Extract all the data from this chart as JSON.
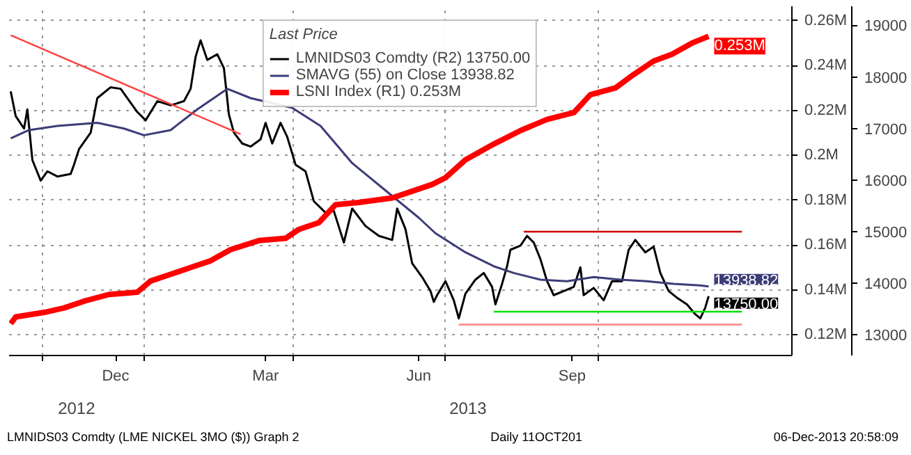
{
  "chart_data": {
    "type": "line",
    "legend_title": "Last Price",
    "legend": "top",
    "grid": true,
    "xlim": [
      "2012-10-12",
      "2014-01-25"
    ],
    "xticks": [
      {
        "value": "2012-11-01",
        "label": null
      },
      {
        "value": "2012-12-15",
        "label": "Dec"
      },
      {
        "value": "2013-01-01",
        "label": null
      },
      {
        "value": "2013-03-15",
        "label": "Mar"
      },
      {
        "value": "2013-04-01",
        "label": null
      },
      {
        "value": "2013-06-15",
        "label": "Jun"
      },
      {
        "value": "2013-07-01",
        "label": null
      },
      {
        "value": "2013-09-15",
        "label": "Sep"
      },
      {
        "value": "2013-10-01",
        "label": null
      }
    ],
    "ylim": [
      110800,
      266400
    ],
    "yticks": [
      {
        "value": 120000,
        "label": "0.12M"
      },
      {
        "value": 140000,
        "label": "0.14M"
      },
      {
        "value": 160000,
        "label": "0.16M"
      },
      {
        "value": 180000,
        "label": "0.18M"
      },
      {
        "value": 200000,
        "label": "0.2M"
      },
      {
        "value": 220000,
        "label": "0.22M"
      },
      {
        "value": 240000,
        "label": "0.24M"
      },
      {
        "value": 260000,
        "label": "0.26M"
      }
    ],
    "y2lim": [
      12600,
      19370
    ],
    "y2ticks": [
      13000,
      14000,
      15000,
      16000,
      17000,
      18000,
      19000
    ],
    "series": [
      {
        "name": "LMNIDS03 Comdty (R2) 13750.00",
        "color": "#000000",
        "axis": "y2",
        "x": [
          "2012-10-13",
          "2012-10-16",
          "2012-10-21",
          "2012-10-23",
          "2012-10-26",
          "2012-10-31",
          "2012-11-04",
          "2012-11-10",
          "2012-11-18",
          "2012-11-20",
          "2012-11-23",
          "2012-11-30",
          "2012-12-04",
          "2012-12-12",
          "2012-12-18",
          "2012-12-28",
          "2013-01-02",
          "2013-01-09",
          "2013-01-17",
          "2013-01-25",
          "2013-01-29",
          "2013-02-01",
          "2013-02-04",
          "2013-02-08",
          "2013-02-14",
          "2013-02-18",
          "2013-02-21",
          "2013-02-24",
          "2013-03-01",
          "2013-03-06",
          "2013-03-12",
          "2013-03-15",
          "2013-03-19",
          "2013-03-24",
          "2013-03-28",
          "2013-04-02",
          "2013-04-08",
          "2013-04-13",
          "2013-04-20",
          "2013-04-25",
          "2013-05-01",
          "2013-05-06",
          "2013-05-14",
          "2013-05-22",
          "2013-05-30",
          "2013-06-02",
          "2013-06-07",
          "2013-06-11",
          "2013-06-17",
          "2013-06-22",
          "2013-06-24",
          "2013-06-26",
          "2013-07-01",
          "2013-07-06",
          "2013-07-09",
          "2013-07-13",
          "2013-07-19",
          "2013-07-24",
          "2013-07-29",
          "2013-07-31",
          "2013-08-04",
          "2013-08-07",
          "2013-08-09",
          "2013-08-15",
          "2013-08-19",
          "2013-08-23",
          "2013-08-27",
          "2013-08-31",
          "2013-09-04",
          "2013-09-10",
          "2013-09-16",
          "2013-09-20",
          "2013-09-22",
          "2013-09-28",
          "2013-10-04",
          "2013-10-09",
          "2013-10-15",
          "2013-10-19",
          "2013-10-23",
          "2013-10-29",
          "2013-11-03",
          "2013-11-07",
          "2013-11-12",
          "2013-11-17",
          "2013-11-23",
          "2013-11-28",
          "2013-12-01",
          "2013-12-04",
          "2013-12-06"
        ],
        "values": [
          17720,
          17240,
          17000,
          17370,
          16390,
          15990,
          16170,
          16070,
          16120,
          16300,
          16600,
          16920,
          17590,
          17800,
          17770,
          17320,
          17160,
          17530,
          17450,
          17530,
          17770,
          18390,
          18710,
          18330,
          18440,
          18170,
          17270,
          16920,
          16710,
          16650,
          16790,
          17110,
          16710,
          17110,
          16840,
          16300,
          16170,
          15590,
          15370,
          15400,
          14790,
          15450,
          15110,
          14920,
          14840,
          15450,
          15050,
          14390,
          14120,
          13850,
          13640,
          13770,
          14040,
          13670,
          13320,
          13800,
          14070,
          14200,
          13930,
          13590,
          13990,
          14330,
          14650,
          14730,
          14920,
          14790,
          14470,
          14040,
          13770,
          13850,
          13930,
          14310,
          13770,
          13910,
          13670,
          14040,
          14040,
          14650,
          14840,
          14600,
          14710,
          14200,
          13850,
          13720,
          13590,
          13400,
          13320,
          13530,
          13750
        ],
        "value_labels": [
          null,
          null,
          null,
          null,
          null,
          null,
          null,
          null,
          null,
          null,
          null,
          null,
          null,
          null,
          null,
          null,
          null,
          null,
          null,
          null,
          null,
          null,
          null,
          null,
          null,
          null,
          null,
          null,
          null,
          null,
          null,
          null,
          null,
          null,
          null,
          null,
          null,
          null,
          null,
          null,
          null,
          null,
          null,
          null,
          null,
          null,
          null,
          null,
          null,
          null,
          null,
          null,
          null,
          null,
          null,
          null,
          null,
          null,
          null,
          null,
          null,
          null,
          null,
          null,
          null,
          null,
          null,
          null,
          null,
          null,
          null,
          null,
          null,
          null,
          null,
          null,
          null,
          null,
          null,
          null,
          null,
          null,
          null,
          null,
          null,
          null,
          null,
          null,
          "13750.00"
        ]
      },
      {
        "name": "SMAVG (55) on Close 13938.82",
        "color": "#3c3c78",
        "axis": "y2",
        "x": [
          "2012-10-13",
          "2012-10-24",
          "2012-11-10",
          "2012-12-04",
          "2012-12-20",
          "2013-01-01",
          "2013-01-17",
          "2013-02-02",
          "2013-02-20",
          "2013-03-06",
          "2013-03-31",
          "2013-04-17",
          "2013-05-06",
          "2013-05-26",
          "2013-06-15",
          "2013-06-25",
          "2013-07-13",
          "2013-07-30",
          "2013-08-11",
          "2013-08-27",
          "2013-09-12",
          "2013-09-28",
          "2013-10-14",
          "2013-10-30",
          "2013-11-15",
          "2013-12-01",
          "2013-12-06"
        ],
        "values": [
          16810,
          16970,
          17050,
          17110,
          17000,
          16870,
          16970,
          17370,
          17770,
          17590,
          17400,
          17050,
          16330,
          15800,
          15270,
          14970,
          14600,
          14330,
          14200,
          14070,
          14040,
          14120,
          14070,
          14040,
          13990,
          13960,
          13938.82
        ],
        "value_labels": [
          null,
          null,
          null,
          null,
          null,
          null,
          null,
          null,
          null,
          null,
          null,
          null,
          null,
          null,
          null,
          null,
          null,
          null,
          null,
          null,
          null,
          null,
          null,
          null,
          null,
          null,
          "13938.82"
        ]
      },
      {
        "name": "LSNI Index (R1) 0.253M",
        "color": "#ff0000",
        "x": [
          "2012-10-13",
          "2012-10-16",
          "2012-11-02",
          "2012-11-14",
          "2012-11-26",
          "2012-12-11",
          "2012-12-28",
          "2013-01-05",
          "2013-01-17",
          "2013-01-29",
          "2013-02-10",
          "2013-02-22",
          "2013-03-11",
          "2013-03-27",
          "2013-04-04",
          "2013-04-16",
          "2013-04-26",
          "2013-05-10",
          "2013-05-30",
          "2013-06-11",
          "2013-06-23",
          "2013-07-01",
          "2013-07-13",
          "2013-07-30",
          "2013-08-15",
          "2013-08-31",
          "2013-09-16",
          "2013-09-26",
          "2013-10-11",
          "2013-10-22",
          "2013-11-03",
          "2013-11-14",
          "2013-11-26",
          "2013-12-06"
        ],
        "values": [
          125000,
          128000,
          130000,
          132000,
          135000,
          138000,
          139000,
          144000,
          147000,
          150000,
          153000,
          158000,
          162000,
          163000,
          167000,
          170000,
          178000,
          179000,
          181000,
          184000,
          187000,
          190000,
          198000,
          205000,
          211000,
          216000,
          219000,
          227000,
          230000,
          236000,
          242000,
          245000,
          250000,
          253000
        ],
        "value_labels": [
          null,
          null,
          null,
          null,
          null,
          null,
          null,
          null,
          null,
          null,
          null,
          null,
          null,
          null,
          null,
          null,
          null,
          null,
          null,
          null,
          null,
          null,
          null,
          null,
          null,
          null,
          null,
          null,
          null,
          null,
          null,
          null,
          null,
          "0.253M"
        ]
      },
      {
        "color": "#ff4040",
        "axis": "y2",
        "x": [
          "2012-10-13",
          "2013-02-28"
        ],
        "values": [
          18810,
          16890
        ]
      },
      {
        "color": "#cc0000",
        "axis": "y2",
        "x": [
          "2013-08-17",
          "2013-12-26"
        ],
        "values": [
          15000,
          15000
        ]
      },
      {
        "color": "#00e000",
        "axis": "y2",
        "x": [
          "2013-07-30",
          "2013-12-26"
        ],
        "values": [
          13450,
          13450
        ]
      },
      {
        "color": "#ff8080",
        "axis": "y2",
        "x": [
          "2013-07-09",
          "2013-12-26"
        ],
        "values": [
          13200,
          13200
        ]
      }
    ],
    "annotations": [
      "2012",
      "2013",
      "LMNIDS03 Comdty (LME NICKEL 3MO ($)) Graph 2",
      "Daily 11OCT201",
      "06-Dec-2013 20:58:09"
    ]
  }
}
